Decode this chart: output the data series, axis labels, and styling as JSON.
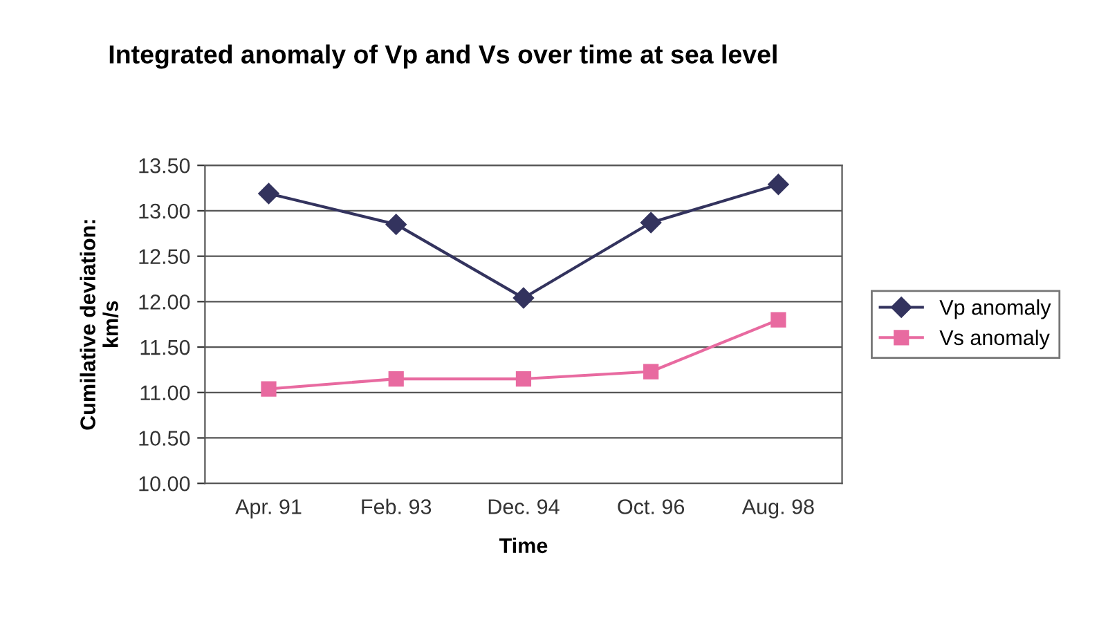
{
  "chart_data": {
    "type": "line",
    "title": "Integrated anomaly of Vp and Vs over time at sea level",
    "xlabel": "Time",
    "ylabel": "Cumilative deviation:\nkm/s",
    "categories": [
      "Apr. 91",
      "Feb. 93",
      "Dec. 94",
      "Oct. 96",
      "Aug. 98"
    ],
    "series": [
      {
        "name": "Vp anomaly",
        "color": "#33335e",
        "marker": "diamond",
        "values": [
          13.19,
          12.85,
          12.04,
          12.87,
          13.29
        ]
      },
      {
        "name": "Vs anomaly",
        "color": "#e86aa0",
        "marker": "square",
        "values": [
          11.04,
          11.15,
          11.15,
          11.23,
          11.8
        ]
      }
    ],
    "ylim": [
      10.0,
      13.5
    ],
    "yticks": [
      {
        "value": 10.0,
        "label": "10.00"
      },
      {
        "value": 10.5,
        "label": "10.50"
      },
      {
        "value": 11.0,
        "label": "11.00"
      },
      {
        "value": 11.5,
        "label": "11.50"
      },
      {
        "value": 12.0,
        "label": "12.00"
      },
      {
        "value": 12.5,
        "label": "12.50"
      },
      {
        "value": 13.0,
        "label": "13.00"
      },
      {
        "value": 13.5,
        "label": "13.50"
      }
    ],
    "grid": "y",
    "legend": "right",
    "line_style": "solid"
  }
}
